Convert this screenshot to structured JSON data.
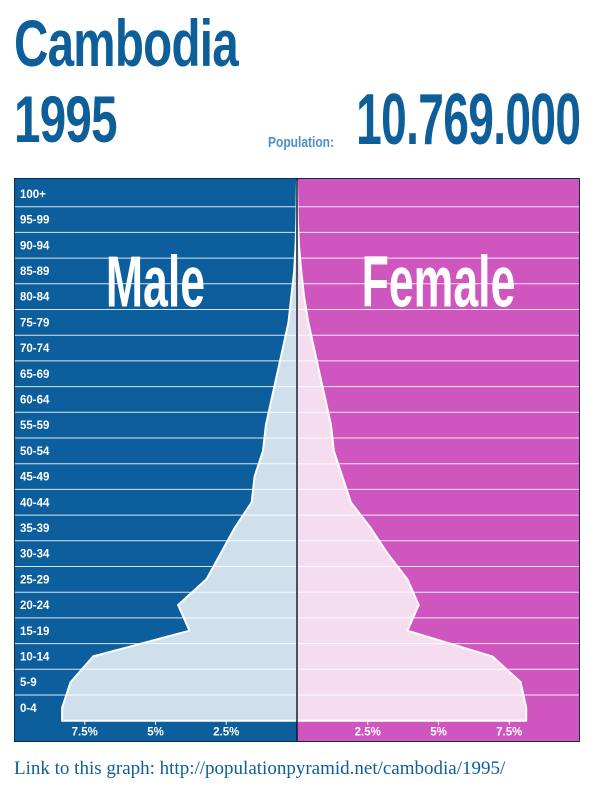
{
  "header": {
    "country": "Cambodia",
    "year": "1995",
    "population_label": "Population:",
    "population_value": "10.769.000"
  },
  "footer": {
    "link_text": "Link to this graph: http://populationpyramid.net/cambodia/1995/"
  },
  "colors": {
    "male_bg": "#0c5f9c",
    "female_bg": "#d056bf",
    "male_fill": "#cfe0ec",
    "female_fill": "#f5ddef",
    "title": "#0d5e99"
  },
  "chart_data": {
    "type": "area",
    "subtype": "population-pyramid",
    "left_label": "Male",
    "right_label": "Female",
    "age_groups": [
      "0-4",
      "5-9",
      "10-14",
      "15-19",
      "20-24",
      "25-29",
      "30-34",
      "35-39",
      "40-44",
      "45-49",
      "50-54",
      "55-59",
      "60-64",
      "65-69",
      "70-74",
      "75-79",
      "80-84",
      "85-89",
      "90-94",
      "95-99",
      "100+"
    ],
    "unit": "%",
    "xlim": [
      -10,
      10
    ],
    "x_ticks": [
      -7.5,
      -5,
      -2.5,
      2.5,
      5,
      7.5
    ],
    "x_tick_labels": [
      "7.5%",
      "5%",
      "2.5%",
      "2.5%",
      "5%",
      "7.5%"
    ],
    "series": [
      {
        "name": "Male",
        "values": [
          8.3,
          8.0,
          7.2,
          3.8,
          4.2,
          3.2,
          2.7,
          2.2,
          1.6,
          1.5,
          1.2,
          1.1,
          0.9,
          0.7,
          0.5,
          0.3,
          0.2,
          0.1,
          0.05,
          0.02,
          0.01
        ]
      },
      {
        "name": "Female",
        "values": [
          8.1,
          7.9,
          6.9,
          3.9,
          4.3,
          3.9,
          3.2,
          2.6,
          1.9,
          1.6,
          1.3,
          1.2,
          1.0,
          0.8,
          0.6,
          0.4,
          0.25,
          0.15,
          0.07,
          0.03,
          0.01
        ]
      }
    ]
  }
}
